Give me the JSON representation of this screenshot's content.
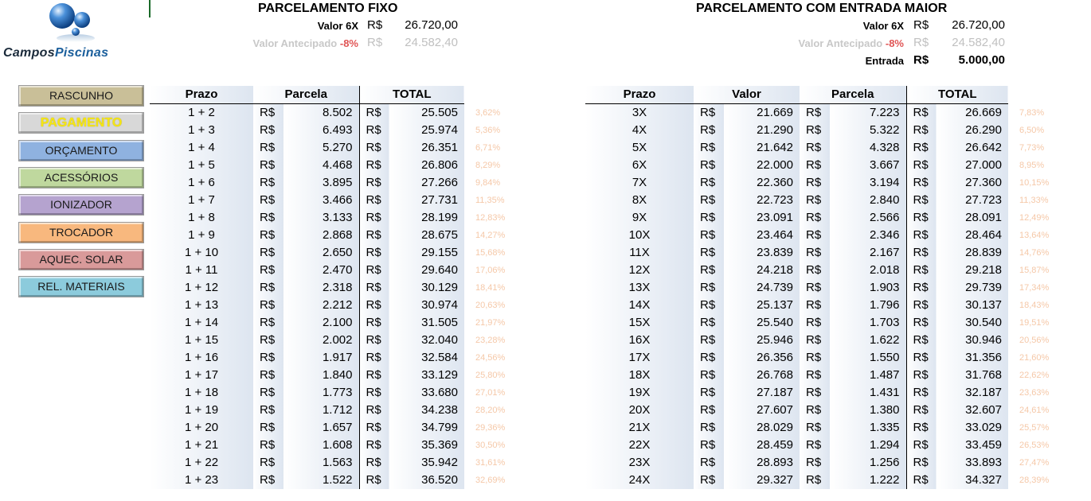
{
  "logo": {
    "part1": "Campos",
    "part2": "Piscinas"
  },
  "nav": [
    {
      "label": "RASCUNHO",
      "color": "#c9bf98"
    },
    {
      "label": "PAGAMENTO",
      "color": "#d8d8d8",
      "active": true
    },
    {
      "label": "ORÇAMENTO",
      "color": "#8fb2e0"
    },
    {
      "label": "ACESSÓRIOS",
      "color": "#bfd89e"
    },
    {
      "label": "IONIZADOR",
      "color": "#b5a3cf"
    },
    {
      "label": "TROCADOR",
      "color": "#f8b87e"
    },
    {
      "label": "AQUEC. SOLAR",
      "color": "#d99a9a"
    },
    {
      "label": "REL. MATERIAIS",
      "color": "#8ccbdc"
    }
  ],
  "fixo": {
    "title": "PARCELAMENTO FIXO",
    "valor6x_label": "Valor 6X",
    "currency": "R$",
    "valor6x": "26.720,00",
    "antecipado_label": "Valor Antecipado",
    "antecipado_pct": "-8%",
    "antecipado": "24.582,40",
    "headers": {
      "prazo": "Prazo",
      "parcela": "Parcela",
      "total": "TOTAL"
    },
    "rows": [
      {
        "prazo": "1 + 2",
        "parcela": "8.502",
        "total": "25.505",
        "pct": "3,62%"
      },
      {
        "prazo": "1 + 3",
        "parcela": "6.493",
        "total": "25.974",
        "pct": "5,36%"
      },
      {
        "prazo": "1 + 4",
        "parcela": "5.270",
        "total": "26.351",
        "pct": "6,71%"
      },
      {
        "prazo": "1 + 5",
        "parcela": "4.468",
        "total": "26.806",
        "pct": "8,29%"
      },
      {
        "prazo": "1 + 6",
        "parcela": "3.895",
        "total": "27.266",
        "pct": "9,84%"
      },
      {
        "prazo": "1 + 7",
        "parcela": "3.466",
        "total": "27.731",
        "pct": "11,35%"
      },
      {
        "prazo": "1 + 8",
        "parcela": "3.133",
        "total": "28.199",
        "pct": "12,83%"
      },
      {
        "prazo": "1 + 9",
        "parcela": "2.868",
        "total": "28.675",
        "pct": "14,27%"
      },
      {
        "prazo": "1 + 10",
        "parcela": "2.650",
        "total": "29.155",
        "pct": "15,68%"
      },
      {
        "prazo": "1 + 11",
        "parcela": "2.470",
        "total": "29.640",
        "pct": "17,06%"
      },
      {
        "prazo": "1 + 12",
        "parcela": "2.318",
        "total": "30.129",
        "pct": "18,41%"
      },
      {
        "prazo": "1 + 13",
        "parcela": "2.212",
        "total": "30.974",
        "pct": "20,63%"
      },
      {
        "prazo": "1 + 14",
        "parcela": "2.100",
        "total": "31.505",
        "pct": "21,97%"
      },
      {
        "prazo": "1 + 15",
        "parcela": "2.002",
        "total": "32.040",
        "pct": "23,28%"
      },
      {
        "prazo": "1 + 16",
        "parcela": "1.917",
        "total": "32.584",
        "pct": "24,56%"
      },
      {
        "prazo": "1 + 17",
        "parcela": "1.840",
        "total": "33.129",
        "pct": "25,80%"
      },
      {
        "prazo": "1 + 18",
        "parcela": "1.773",
        "total": "33.680",
        "pct": "27,01%"
      },
      {
        "prazo": "1 + 19",
        "parcela": "1.712",
        "total": "34.238",
        "pct": "28,20%"
      },
      {
        "prazo": "1 + 20",
        "parcela": "1.657",
        "total": "34.799",
        "pct": "29,36%"
      },
      {
        "prazo": "1 + 21",
        "parcela": "1.608",
        "total": "35.369",
        "pct": "30,50%"
      },
      {
        "prazo": "1 + 22",
        "parcela": "1.563",
        "total": "35.942",
        "pct": "31,61%"
      },
      {
        "prazo": "1 + 23",
        "parcela": "1.522",
        "total": "36.520",
        "pct": "32,69%"
      }
    ]
  },
  "entrada": {
    "title": "PARCELAMENTO COM ENTRADA MAIOR",
    "valor6x_label": "Valor 6X",
    "currency": "R$",
    "valor6x": "26.720,00",
    "antecipado_label": "Valor Antecipado",
    "antecipado_pct": "-8%",
    "antecipado": "24.582,40",
    "entrada_label": "Entrada",
    "entrada": "5.000,00",
    "headers": {
      "prazo": "Prazo",
      "valor": "Valor",
      "parcela": "Parcela",
      "total": "TOTAL"
    },
    "rows": [
      {
        "prazo": "3X",
        "valor": "21.669",
        "parcela": "7.223",
        "total": "26.669",
        "pct": "7,83%"
      },
      {
        "prazo": "4X",
        "valor": "21.290",
        "parcela": "5.322",
        "total": "26.290",
        "pct": "6,50%"
      },
      {
        "prazo": "5X",
        "valor": "21.642",
        "parcela": "4.328",
        "total": "26.642",
        "pct": "7,73%"
      },
      {
        "prazo": "6X",
        "valor": "22.000",
        "parcela": "3.667",
        "total": "27.000",
        "pct": "8,95%"
      },
      {
        "prazo": "7X",
        "valor": "22.360",
        "parcela": "3.194",
        "total": "27.360",
        "pct": "10,15%"
      },
      {
        "prazo": "8X",
        "valor": "22.723",
        "parcela": "2.840",
        "total": "27.723",
        "pct": "11,33%"
      },
      {
        "prazo": "9X",
        "valor": "23.091",
        "parcela": "2.566",
        "total": "28.091",
        "pct": "12,49%"
      },
      {
        "prazo": "10X",
        "valor": "23.464",
        "parcela": "2.346",
        "total": "28.464",
        "pct": "13,64%"
      },
      {
        "prazo": "11X",
        "valor": "23.839",
        "parcela": "2.167",
        "total": "28.839",
        "pct": "14,76%"
      },
      {
        "prazo": "12X",
        "valor": "24.218",
        "parcela": "2.018",
        "total": "29.218",
        "pct": "15,87%"
      },
      {
        "prazo": "13X",
        "valor": "24.739",
        "parcela": "1.903",
        "total": "29.739",
        "pct": "17,34%"
      },
      {
        "prazo": "14X",
        "valor": "25.137",
        "parcela": "1.796",
        "total": "30.137",
        "pct": "18,43%"
      },
      {
        "prazo": "15X",
        "valor": "25.540",
        "parcela": "1.703",
        "total": "30.540",
        "pct": "19,51%"
      },
      {
        "prazo": "16X",
        "valor": "25.946",
        "parcela": "1.622",
        "total": "30.946",
        "pct": "20,56%"
      },
      {
        "prazo": "17X",
        "valor": "26.356",
        "parcela": "1.550",
        "total": "31.356",
        "pct": "21,60%"
      },
      {
        "prazo": "18X",
        "valor": "26.768",
        "parcela": "1.487",
        "total": "31.768",
        "pct": "22,62%"
      },
      {
        "prazo": "19X",
        "valor": "27.187",
        "parcela": "1.431",
        "total": "32.187",
        "pct": "23,63%"
      },
      {
        "prazo": "20X",
        "valor": "27.607",
        "parcela": "1.380",
        "total": "32.607",
        "pct": "24,61%"
      },
      {
        "prazo": "21X",
        "valor": "28.029",
        "parcela": "1.335",
        "total": "33.029",
        "pct": "25,57%"
      },
      {
        "prazo": "22X",
        "valor": "28.459",
        "parcela": "1.294",
        "total": "33.459",
        "pct": "26,53%"
      },
      {
        "prazo": "23X",
        "valor": "28.893",
        "parcela": "1.256",
        "total": "33.893",
        "pct": "27,47%"
      },
      {
        "prazo": "24X",
        "valor": "29.327",
        "parcela": "1.222",
        "total": "34.327",
        "pct": "28,39%"
      }
    ]
  }
}
